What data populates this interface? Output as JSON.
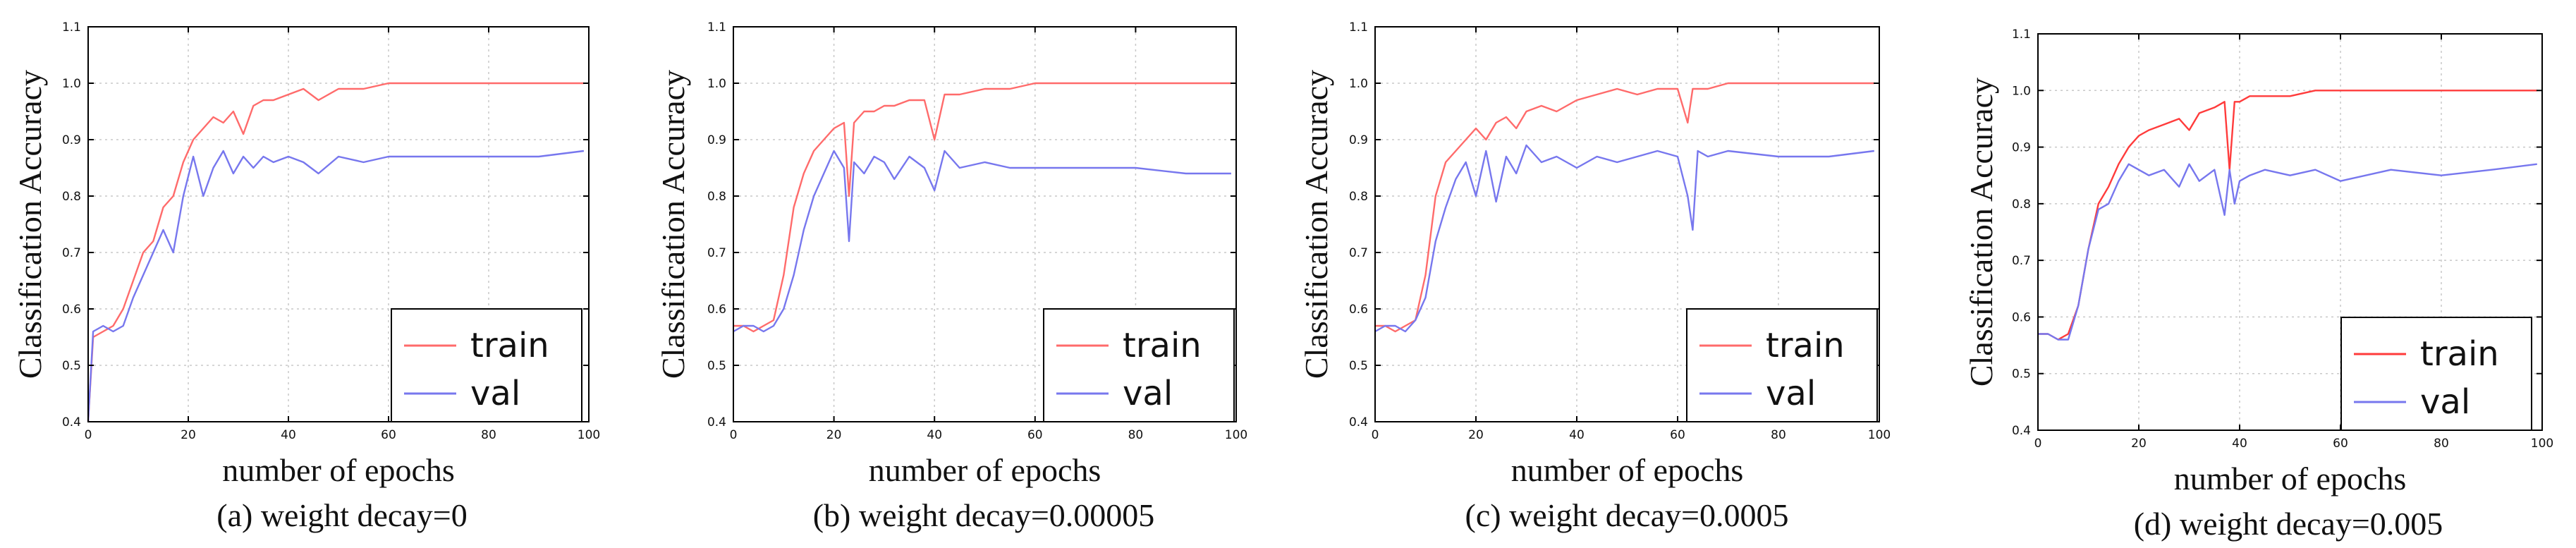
{
  "figure": {
    "background": "#ffffff"
  },
  "chart_data": [
    {
      "type": "line",
      "title": "",
      "caption": "(a) weight decay=0",
      "xlabel": "number of epochs",
      "ylabel": "Classification Accuracy",
      "xlim": [
        0,
        100
      ],
      "ylim": [
        0.4,
        1.1
      ],
      "xticks": [
        0,
        20,
        40,
        60,
        80,
        100
      ],
      "yticks": [
        0.4,
        0.5,
        0.6,
        0.7,
        0.8,
        0.9,
        1.0,
        1.1
      ],
      "grid": true,
      "legend_position": "bottom-right",
      "series": [
        {
          "name": "train",
          "color": "#ff6b6b",
          "x": [
            0,
            1,
            3,
            5,
            7,
            9,
            11,
            13,
            15,
            17,
            19,
            21,
            23,
            25,
            27,
            29,
            31,
            33,
            35,
            37,
            40,
            43,
            46,
            50,
            55,
            60,
            70,
            80,
            90,
            99
          ],
          "y": [
            0.4,
            0.55,
            0.56,
            0.57,
            0.6,
            0.65,
            0.7,
            0.72,
            0.78,
            0.8,
            0.86,
            0.9,
            0.92,
            0.94,
            0.93,
            0.95,
            0.91,
            0.96,
            0.97,
            0.97,
            0.98,
            0.99,
            0.97,
            0.99,
            0.99,
            1.0,
            1.0,
            1.0,
            1.0,
            1.0
          ]
        },
        {
          "name": "val",
          "color": "#7777ee",
          "x": [
            0,
            1,
            3,
            5,
            7,
            9,
            11,
            13,
            15,
            17,
            19,
            21,
            23,
            25,
            27,
            29,
            31,
            33,
            35,
            37,
            40,
            43,
            46,
            50,
            55,
            60,
            70,
            80,
            90,
            99
          ],
          "y": [
            0.4,
            0.56,
            0.57,
            0.56,
            0.57,
            0.62,
            0.66,
            0.7,
            0.74,
            0.7,
            0.8,
            0.87,
            0.8,
            0.85,
            0.88,
            0.84,
            0.87,
            0.85,
            0.87,
            0.86,
            0.87,
            0.86,
            0.84,
            0.87,
            0.86,
            0.87,
            0.87,
            0.87,
            0.87,
            0.88
          ]
        }
      ]
    },
    {
      "type": "line",
      "title": "",
      "caption": "(b) weight decay=0.00005",
      "xlabel": "number of epochs",
      "ylabel": "Classification Accuracy",
      "xlim": [
        0,
        100
      ],
      "ylim": [
        0.4,
        1.1
      ],
      "xticks": [
        0,
        20,
        40,
        60,
        80,
        100
      ],
      "yticks": [
        0.4,
        0.5,
        0.6,
        0.7,
        0.8,
        0.9,
        1.0,
        1.1
      ],
      "grid": true,
      "legend_position": "bottom-right",
      "series": [
        {
          "name": "train",
          "color": "#ff6b6b",
          "x": [
            0,
            2,
            4,
            6,
            8,
            10,
            12,
            14,
            16,
            18,
            20,
            22,
            23,
            24,
            26,
            28,
            30,
            32,
            35,
            38,
            40,
            42,
            45,
            50,
            55,
            60,
            70,
            80,
            90,
            99
          ],
          "y": [
            0.57,
            0.57,
            0.56,
            0.57,
            0.58,
            0.66,
            0.78,
            0.84,
            0.88,
            0.9,
            0.92,
            0.93,
            0.8,
            0.93,
            0.95,
            0.95,
            0.96,
            0.96,
            0.97,
            0.97,
            0.9,
            0.98,
            0.98,
            0.99,
            0.99,
            1.0,
            1.0,
            1.0,
            1.0,
            1.0
          ]
        },
        {
          "name": "val",
          "color": "#7777ee",
          "x": [
            0,
            2,
            4,
            6,
            8,
            10,
            12,
            14,
            16,
            18,
            20,
            22,
            23,
            24,
            26,
            28,
            30,
            32,
            35,
            38,
            40,
            42,
            45,
            50,
            55,
            60,
            70,
            80,
            90,
            99
          ],
          "y": [
            0.56,
            0.57,
            0.57,
            0.56,
            0.57,
            0.6,
            0.66,
            0.74,
            0.8,
            0.84,
            0.88,
            0.85,
            0.72,
            0.86,
            0.84,
            0.87,
            0.86,
            0.83,
            0.87,
            0.85,
            0.81,
            0.88,
            0.85,
            0.86,
            0.85,
            0.85,
            0.85,
            0.85,
            0.84,
            0.84
          ]
        }
      ]
    },
    {
      "type": "line",
      "title": "",
      "caption": "(c) weight decay=0.0005",
      "xlabel": "number of epochs",
      "ylabel": "Classification Accuracy",
      "xlim": [
        0,
        100
      ],
      "ylim": [
        0.4,
        1.1
      ],
      "xticks": [
        0,
        20,
        40,
        60,
        80,
        100
      ],
      "yticks": [
        0.4,
        0.5,
        0.6,
        0.7,
        0.8,
        0.9,
        1.0,
        1.1
      ],
      "grid": true,
      "legend_position": "bottom-right",
      "series": [
        {
          "name": "train",
          "color": "#ff6b6b",
          "x": [
            0,
            2,
            4,
            6,
            8,
            10,
            12,
            14,
            16,
            18,
            20,
            22,
            24,
            26,
            28,
            30,
            33,
            36,
            40,
            44,
            48,
            52,
            56,
            60,
            62,
            63,
            64,
            66,
            70,
            80,
            90,
            99
          ],
          "y": [
            0.57,
            0.57,
            0.56,
            0.57,
            0.58,
            0.66,
            0.8,
            0.86,
            0.88,
            0.9,
            0.92,
            0.9,
            0.93,
            0.94,
            0.92,
            0.95,
            0.96,
            0.95,
            0.97,
            0.98,
            0.99,
            0.98,
            0.99,
            0.99,
            0.93,
            0.99,
            0.99,
            0.99,
            1.0,
            1.0,
            1.0,
            1.0
          ]
        },
        {
          "name": "val",
          "color": "#7777ee",
          "x": [
            0,
            2,
            4,
            6,
            8,
            10,
            12,
            14,
            16,
            18,
            20,
            22,
            24,
            26,
            28,
            30,
            33,
            36,
            40,
            44,
            48,
            52,
            56,
            60,
            62,
            63,
            64,
            66,
            70,
            80,
            90,
            99
          ],
          "y": [
            0.56,
            0.57,
            0.57,
            0.56,
            0.58,
            0.62,
            0.72,
            0.78,
            0.83,
            0.86,
            0.8,
            0.88,
            0.79,
            0.87,
            0.84,
            0.89,
            0.86,
            0.87,
            0.85,
            0.87,
            0.86,
            0.87,
            0.88,
            0.87,
            0.8,
            0.74,
            0.88,
            0.87,
            0.88,
            0.87,
            0.87,
            0.88
          ]
        }
      ]
    },
    {
      "type": "line",
      "title": "",
      "caption": "(d) weight decay=0.005",
      "xlabel": "number of epochs",
      "ylabel": "Classification Accuracy",
      "xlim": [
        0,
        100
      ],
      "ylim": [
        0.4,
        1.1
      ],
      "xticks": [
        0,
        20,
        40,
        60,
        80,
        100
      ],
      "yticks": [
        0.4,
        0.5,
        0.6,
        0.7,
        0.8,
        0.9,
        1.0,
        1.1
      ],
      "grid": true,
      "legend_position": "bottom-right",
      "series": [
        {
          "name": "train",
          "color": "#ff3b3b",
          "x": [
            0,
            2,
            4,
            6,
            8,
            10,
            12,
            14,
            16,
            18,
            20,
            22,
            25,
            28,
            30,
            32,
            35,
            37,
            38,
            39,
            40,
            42,
            45,
            50,
            55,
            60,
            70,
            80,
            90,
            99
          ],
          "y": [
            0.57,
            0.57,
            0.56,
            0.57,
            0.62,
            0.72,
            0.8,
            0.83,
            0.87,
            0.9,
            0.92,
            0.93,
            0.94,
            0.95,
            0.93,
            0.96,
            0.97,
            0.98,
            0.86,
            0.98,
            0.98,
            0.99,
            0.99,
            0.99,
            1.0,
            1.0,
            1.0,
            1.0,
            1.0,
            1.0
          ]
        },
        {
          "name": "val",
          "color": "#7777ee",
          "x": [
            0,
            2,
            4,
            6,
            8,
            10,
            12,
            14,
            16,
            18,
            20,
            22,
            25,
            28,
            30,
            32,
            35,
            37,
            38,
            39,
            40,
            42,
            45,
            50,
            55,
            60,
            70,
            80,
            90,
            99
          ],
          "y": [
            0.57,
            0.57,
            0.56,
            0.56,
            0.62,
            0.72,
            0.79,
            0.8,
            0.84,
            0.87,
            0.86,
            0.85,
            0.86,
            0.83,
            0.87,
            0.84,
            0.86,
            0.78,
            0.86,
            0.8,
            0.84,
            0.85,
            0.86,
            0.85,
            0.86,
            0.84,
            0.86,
            0.85,
            0.86,
            0.87
          ]
        }
      ]
    }
  ]
}
